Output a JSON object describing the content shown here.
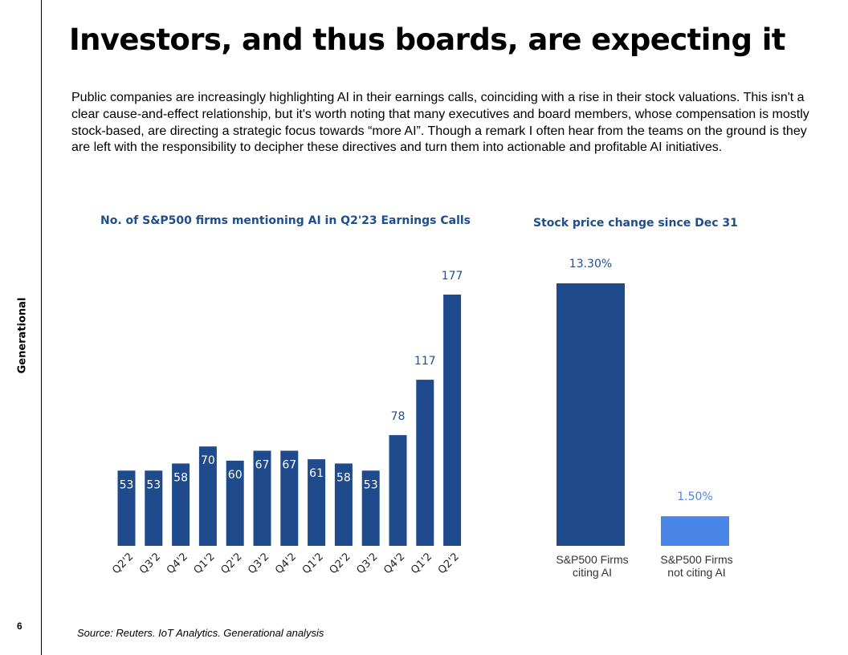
{
  "slide": {
    "title": "Investors, and thus boards, are expecting it",
    "body": "Public companies are increasingly highlighting AI in their earnings calls, coinciding with a rise in their stock valuations. This isn't a clear cause-and-effect relationship, but it's worth noting that many executives and board members, whose compensation is mostly stock-based, are directing a strategic focus towards “more AI”. Though a remark I often hear from the teams on the ground is they are left with the responsibility to decipher these directives and turn them into actionable and profitable AI initiatives.",
    "side_label": "Generational",
    "page_number": "6",
    "source": "Source: Reuters. IoT Analytics. Generational analysis"
  },
  "colors": {
    "dark_blue": "#1f4a8c",
    "light_blue": "#4a86e8",
    "title_blue": "#1f4e8c"
  },
  "chart_data": [
    {
      "type": "bar",
      "title": "No. of S&P500 firms mentioning AI in Q2'23 Earnings Calls",
      "categories": [
        "Q2'2",
        "Q3'2",
        "Q4'2",
        "Q1'2",
        "Q2'2",
        "Q3'2",
        "Q4'2",
        "Q1'2",
        "Q2'2",
        "Q3'2",
        "Q4'2",
        "Q1'2",
        "Q2'2"
      ],
      "values": [
        53,
        53,
        58,
        70,
        60,
        67,
        67,
        61,
        58,
        53,
        78,
        117,
        177
      ],
      "ylim": [
        0,
        177
      ],
      "grid": false
    },
    {
      "type": "bar",
      "title": "Stock price change since Dec 31",
      "categories": [
        "S&P500 Firms citing AI",
        "S&P500 Firms not citing AI"
      ],
      "category_lines": [
        [
          "S&P500 Firms",
          "citing AI"
        ],
        [
          "S&P500 Firms",
          "not citing AI"
        ]
      ],
      "values": [
        13.3,
        1.5
      ],
      "labels": [
        "13.30%",
        "1.50%"
      ],
      "ylim": [
        0,
        13.3
      ],
      "grid": false
    }
  ]
}
